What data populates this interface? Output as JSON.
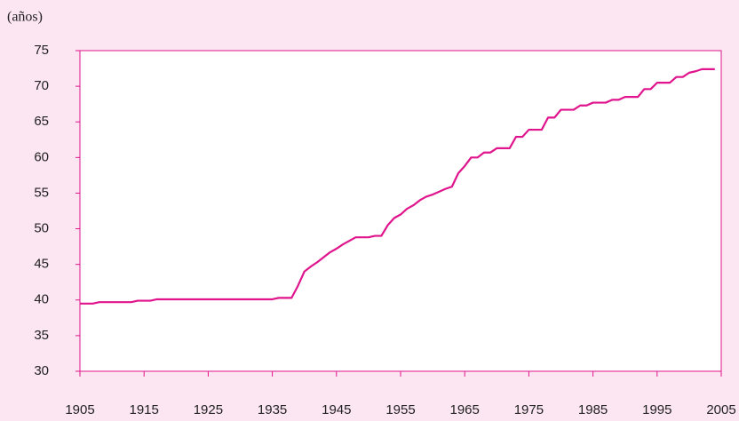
{
  "chart_data": {
    "type": "line",
    "y_label": "(años)",
    "x": [
      1905,
      1906,
      1907,
      1908,
      1909,
      1910,
      1911,
      1912,
      1913,
      1914,
      1915,
      1916,
      1917,
      1918,
      1919,
      1920,
      1921,
      1922,
      1923,
      1924,
      1925,
      1926,
      1927,
      1928,
      1929,
      1930,
      1931,
      1932,
      1933,
      1934,
      1935,
      1936,
      1937,
      1938,
      1939,
      1940,
      1941,
      1942,
      1943,
      1944,
      1945,
      1946,
      1947,
      1948,
      1949,
      1950,
      1951,
      1952,
      1953,
      1954,
      1955,
      1956,
      1957,
      1958,
      1959,
      1960,
      1961,
      1962,
      1963,
      1964,
      1965,
      1966,
      1967,
      1968,
      1969,
      1970,
      1971,
      1972,
      1973,
      1974,
      1975,
      1976,
      1977,
      1978,
      1979,
      1980,
      1981,
      1982,
      1983,
      1984,
      1985,
      1986,
      1987,
      1988,
      1989,
      1990,
      1991,
      1992,
      1993,
      1994,
      1995,
      1996,
      1997,
      1998,
      1999,
      2000,
      2001,
      2002,
      2003,
      2004
    ],
    "series": [
      {
        "color": "#e0148c",
        "values": [
          39.5,
          39.5,
          39.5,
          39.7,
          39.7,
          39.7,
          39.7,
          39.7,
          39.7,
          39.9,
          39.9,
          39.9,
          40.1,
          40.1,
          40.1,
          40.1,
          40.1,
          40.1,
          40.1,
          40.1,
          40.1,
          40.1,
          40.1,
          40.1,
          40.1,
          40.1,
          40.1,
          40.1,
          40.1,
          40.1,
          40.1,
          40.3,
          40.3,
          40.3,
          42,
          44,
          44.7,
          45.3,
          46,
          46.7,
          47.2,
          47.8,
          48.3,
          48.8,
          48.8,
          48.8,
          49,
          49,
          50.5,
          51.5,
          52,
          52.8,
          53.3,
          54,
          54.5,
          54.8,
          55.2,
          55.6,
          55.9,
          57.8,
          58.8,
          60,
          60,
          60.7,
          60.7,
          61.3,
          61.3,
          61.3,
          62.9,
          62.9,
          63.9,
          63.9,
          63.9,
          65.6,
          65.6,
          66.7,
          66.7,
          66.7,
          67.3,
          67.3,
          67.7,
          67.7,
          67.7,
          68.1,
          68.1,
          68.5,
          68.5,
          68.5,
          69.6,
          69.6,
          70.5,
          70.5,
          70.5,
          71.3,
          71.3,
          71.9,
          72.1,
          72.4,
          72.4,
          72.4
        ]
      }
    ],
    "xlim": [
      1905,
      2005
    ],
    "xticks": [
      1905,
      1915,
      1925,
      1935,
      1945,
      1955,
      1965,
      1975,
      1985,
      1995,
      2005
    ],
    "ylim": [
      30,
      75
    ],
    "yticks": [
      30,
      35,
      40,
      45,
      50,
      55,
      60,
      65,
      70,
      75
    ]
  }
}
